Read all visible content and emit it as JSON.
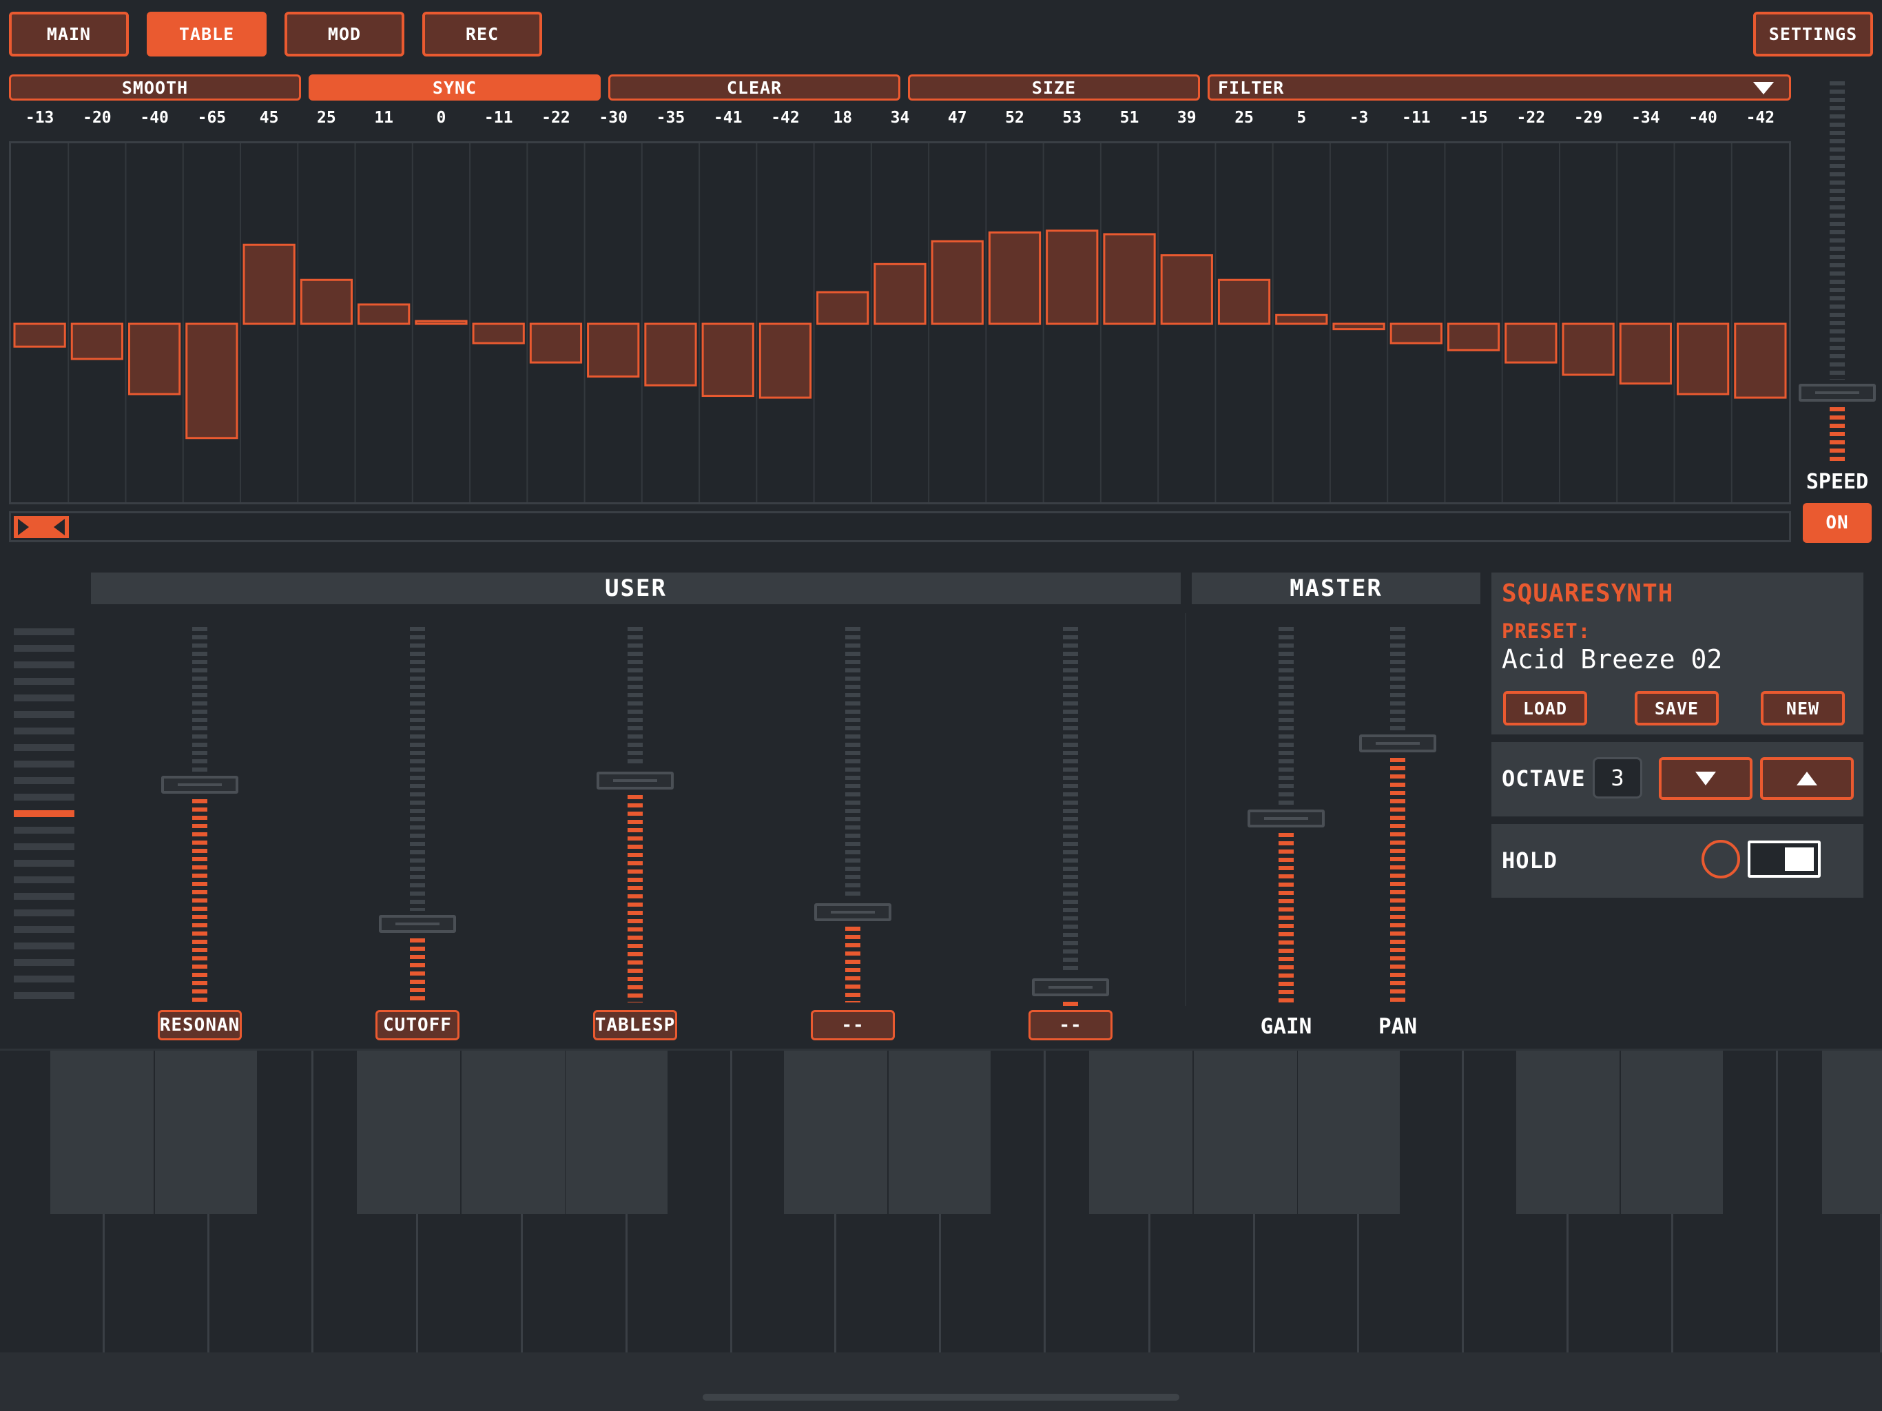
{
  "nav": {
    "main": "MAIN",
    "table": "TABLE",
    "mod": "MOD",
    "rec": "REC",
    "settings": "SETTINGS"
  },
  "toolbar": {
    "smooth": "SMOOTH",
    "sync": "SYNC",
    "clear": "CLEAR",
    "size": "SIZE",
    "filter": "FILTER"
  },
  "table": {
    "values": [
      -13,
      -20,
      -40,
      -65,
      45,
      25,
      11,
      0,
      -11,
      -22,
      -30,
      -35,
      -41,
      -42,
      18,
      34,
      47,
      52,
      53,
      51,
      39,
      25,
      5,
      -3,
      -11,
      -15,
      -22,
      -29,
      -34,
      -40,
      -42
    ],
    "range": [
      -65,
      53
    ],
    "playhead_position": 0.0
  },
  "speed": {
    "label": "SPEED",
    "toggle": "ON",
    "level": 0.15
  },
  "user": {
    "title": "USER",
    "sliders": [
      {
        "label": "RESONAN",
        "level": 0.58
      },
      {
        "label": "CUTOFF",
        "level": 0.21
      },
      {
        "label": "TABLESP",
        "level": 0.59
      },
      {
        "label": "--",
        "level": 0.24
      },
      {
        "label": "--",
        "level": 0.04
      }
    ]
  },
  "master": {
    "title": "MASTER",
    "sliders": [
      {
        "label": "GAIN",
        "level": 0.49
      },
      {
        "label": "PAN",
        "level": 0.69
      }
    ]
  },
  "synth": {
    "name": "SQUARESYNTH",
    "preset_label": "PRESET:",
    "preset_name": "Acid Breeze 02",
    "load": "LOAD",
    "save": "SAVE",
    "new": "NEW",
    "octave_label": "OCTAVE",
    "octave_value": "3",
    "hold_label": "HOLD",
    "hold_on": true
  },
  "left_meter": {
    "level": 0.5
  },
  "colors": {
    "accent": "#ea5a30",
    "bar_fill": "#613329",
    "background": "#23272c",
    "panel": "#383d42"
  }
}
